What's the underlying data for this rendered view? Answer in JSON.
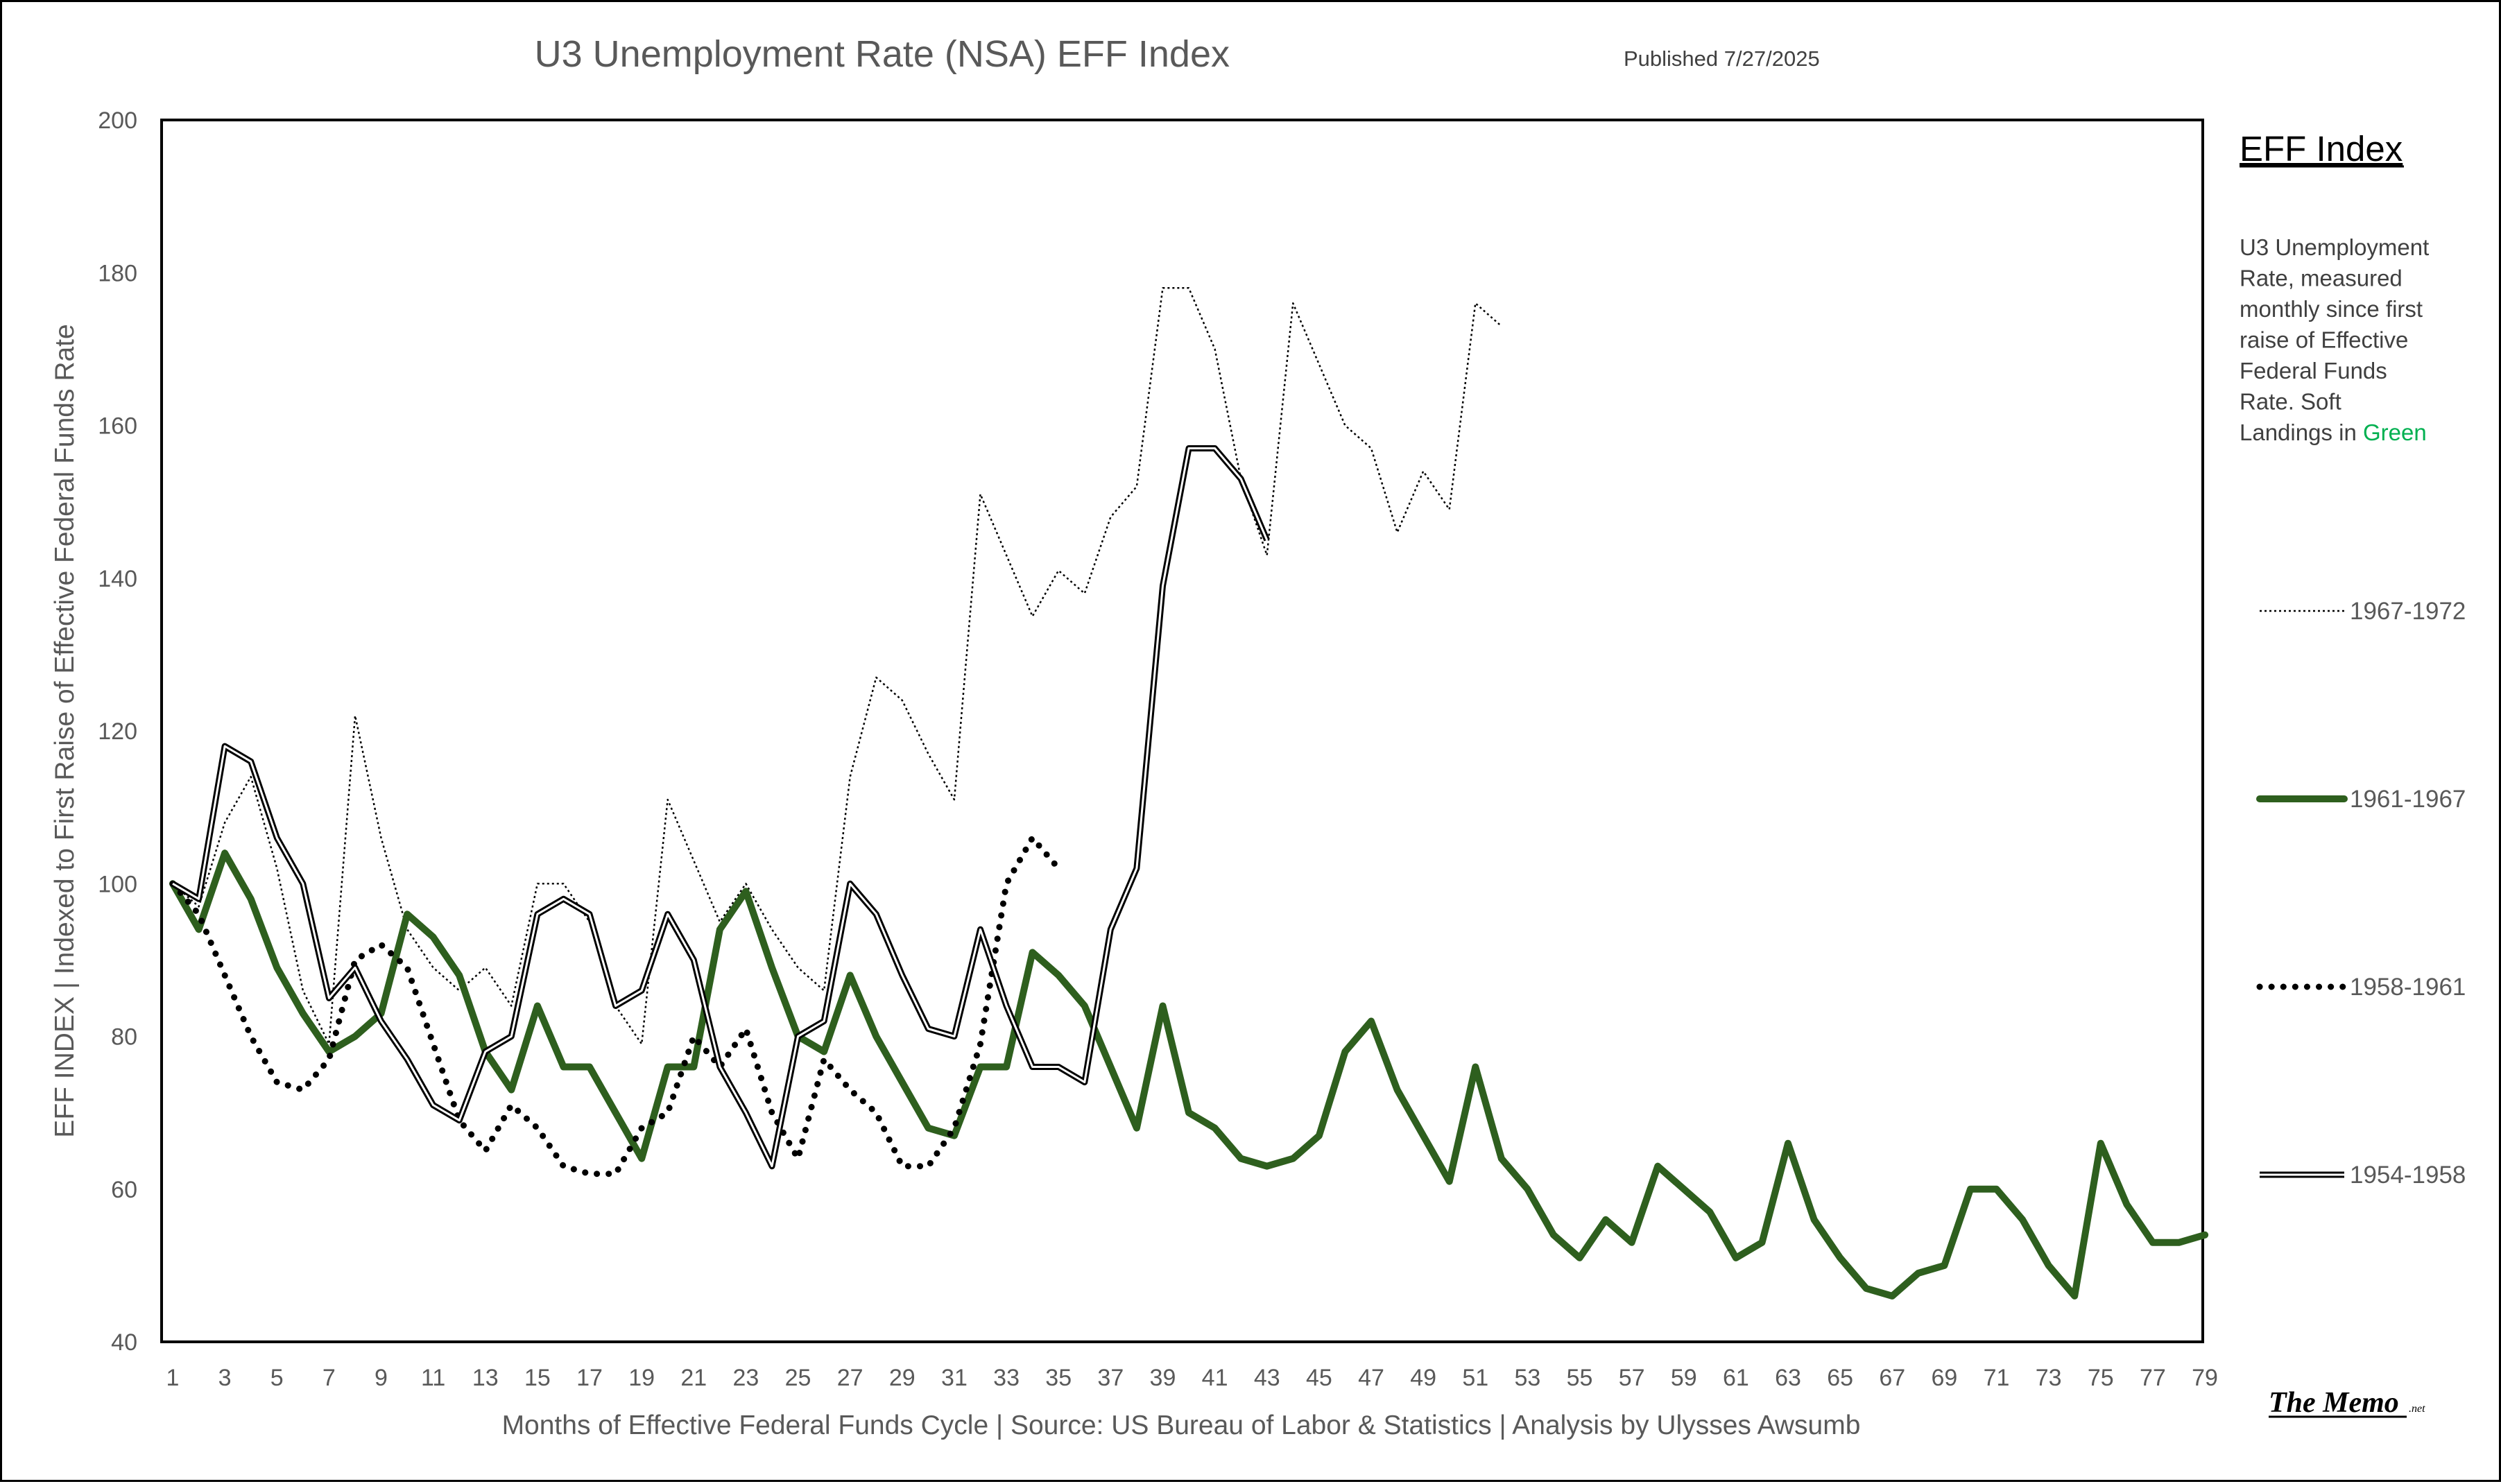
{
  "chart_data": {
    "type": "line",
    "title": "U3 Unemployment Rate (NSA) EFF Index",
    "subtitle": "Published 7/27/2025",
    "xlabel": "Months of Effective Federal Funds Cycle | Source: US Bureau of Labor & Statistics | Analysis by Ulysses Awsumb",
    "ylabel": "EFF INDEX | Indexed to First Raise of Effective Federal Funds Rate",
    "ylim": [
      40,
      200
    ],
    "xlim": [
      1,
      79
    ],
    "yticks": [
      40,
      60,
      80,
      100,
      120,
      140,
      160,
      180,
      200
    ],
    "xticks": [
      1,
      3,
      5,
      7,
      9,
      11,
      13,
      15,
      17,
      19,
      21,
      23,
      25,
      27,
      29,
      31,
      33,
      35,
      37,
      39,
      41,
      43,
      45,
      47,
      49,
      51,
      53,
      55,
      57,
      59,
      61,
      63,
      65,
      67,
      69,
      71,
      73,
      75,
      77,
      79
    ],
    "grid": false,
    "legend": {
      "title": "EFF Index",
      "description_lines": [
        "U3 Unemployment",
        "Rate, measured",
        "monthly since first",
        "raise of Effective",
        "Federal Funds",
        "Rate. Soft",
        "Landings in "
      ],
      "highlight_word": "Green",
      "position": "right"
    },
    "series": [
      {
        "name": "1967-1972",
        "style": "thin-dotted",
        "color": "#000000",
        "values": [
          100,
          97,
          108,
          114,
          102,
          86,
          79,
          122,
          106,
          94,
          89,
          86,
          89,
          84,
          100,
          100,
          95,
          84,
          79,
          111,
          103,
          95,
          100,
          94,
          89,
          86,
          114,
          127,
          124,
          117,
          111,
          151,
          143,
          135,
          141,
          138,
          148,
          152,
          178,
          178,
          170,
          153,
          143,
          176,
          168,
          160,
          157,
          146,
          154,
          149,
          176,
          173
        ]
      },
      {
        "name": "1961-1967",
        "style": "thick-solid",
        "color": "#2e5f1e",
        "values": [
          100,
          94,
          104,
          98,
          89,
          83,
          78,
          80,
          83,
          96,
          93,
          88,
          78,
          73,
          84,
          76,
          76,
          70,
          64,
          76,
          76,
          94,
          99,
          89,
          80,
          78,
          88,
          80,
          74,
          68,
          67,
          76,
          76,
          91,
          88,
          84,
          76,
          68,
          84,
          70,
          68,
          64,
          63,
          64,
          67,
          78,
          82,
          73,
          67,
          61,
          76,
          64,
          60,
          54,
          51,
          56,
          53,
          63,
          60,
          57,
          51,
          53,
          66,
          56,
          51,
          47,
          46,
          49,
          50,
          60,
          60,
          56,
          50,
          46,
          66,
          58,
          53,
          53,
          54
        ]
      },
      {
        "name": "1958-1961",
        "style": "thick-dotted",
        "color": "#000000",
        "values": [
          100,
          96,
          88,
          80,
          74,
          73,
          77,
          90,
          92,
          89,
          79,
          69,
          65,
          71,
          68,
          63,
          62,
          62,
          68,
          70,
          80,
          76,
          81,
          70,
          64,
          77,
          73,
          70,
          63,
          63,
          68,
          79,
          100,
          106,
          102
        ]
      },
      {
        "name": "1954-1958",
        "style": "double-line",
        "color": "#000000",
        "values": [
          100,
          98,
          118,
          116,
          106,
          100,
          85,
          89,
          82,
          77,
          71,
          69,
          78,
          80,
          96,
          98,
          96,
          84,
          86,
          96,
          90,
          76,
          70,
          63,
          80,
          82,
          100,
          96,
          88,
          81,
          80,
          94,
          84,
          76,
          76,
          74,
          94,
          102,
          139,
          157,
          157,
          153,
          145
        ]
      }
    ]
  },
  "branding": {
    "logo_main": "The Memo",
    "logo_suffix": ".net"
  }
}
